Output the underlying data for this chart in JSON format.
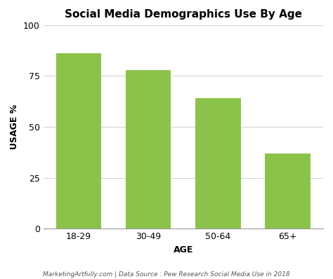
{
  "title": "Social Media Demographics Use By Age",
  "categories": [
    "18-29",
    "30-49",
    "50-64",
    "65+"
  ],
  "values": [
    86,
    78,
    64,
    37
  ],
  "bar_color": "#8BC34A",
  "xlabel": "AGE",
  "ylabel": "USAGE %",
  "ylim": [
    0,
    100
  ],
  "yticks": [
    0,
    25,
    50,
    75,
    100
  ],
  "footnote": "MarketingArtfully.com | Data Source : Pew Research Social Media Use in 2018",
  "background_color": "#ffffff",
  "title_fontsize": 11,
  "axis_label_fontsize": 9,
  "tick_fontsize": 9,
  "footnote_fontsize": 6.5
}
